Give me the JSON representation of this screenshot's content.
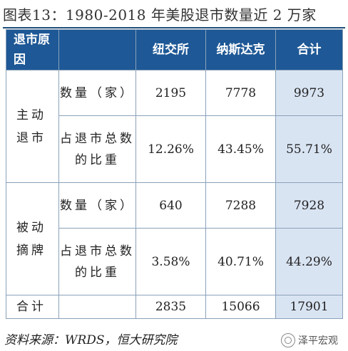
{
  "title": "图表13：1980-2018 年美股退市数量近 2 万家",
  "table": {
    "headers": [
      "退市原因",
      "纽交所",
      "纳斯达克",
      "合计"
    ],
    "groups": [
      {
        "name": "主动退市",
        "rows": [
          {
            "label": "数量（家）",
            "nyse": "2195",
            "nasdaq": "7778",
            "total": "9973"
          },
          {
            "label": "占退市总数的比重",
            "nyse": "12.26%",
            "nasdaq": "43.45%",
            "total": "55.71%"
          }
        ]
      },
      {
        "name": "被动摘牌",
        "rows": [
          {
            "label": "数量（家）",
            "nyse": "640",
            "nasdaq": "7288",
            "total": "7928"
          },
          {
            "label": "占退市总数的比重",
            "nyse": "3.58%",
            "nasdaq": "40.71%",
            "total": "44.29%"
          }
        ]
      }
    ],
    "total_row": {
      "label": "合计",
      "nyse": "2835",
      "nasdaq": "15066",
      "total": "17901"
    }
  },
  "source": "资料来源：WRDS，恒大研究院",
  "watermark": "泽平宏观"
}
